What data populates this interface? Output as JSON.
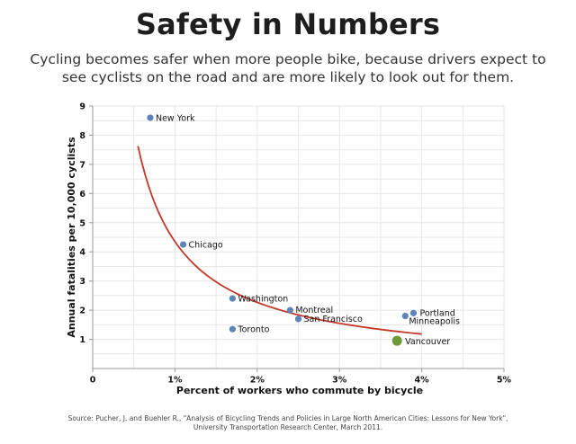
{
  "title": "Safety in Numbers",
  "subtitle": "Cycling becomes safer when more people bike, because drivers expect to see cyclists on the road and are more likely to look out for them.",
  "source": "Source: Pucher, J. and Buehler R., \"Analysis of Bicycling Trends and Policies in Large North American Cities: Lessons for New York\", University Transportation Research Center, March 2011.",
  "chart_data": {
    "type": "scatter",
    "xlabel": "Percent of workers who commute by bicycle",
    "ylabel": "Annual fatalities per 10,000 cyclists",
    "xlim": [
      0,
      5
    ],
    "ylim": [
      0,
      9
    ],
    "x_ticks": [
      {
        "value": 0,
        "label": "0"
      },
      {
        "value": 1,
        "label": "1%"
      },
      {
        "value": 2,
        "label": "2%"
      },
      {
        "value": 3,
        "label": "3%"
      },
      {
        "value": 4,
        "label": "4%"
      },
      {
        "value": 5,
        "label": "5%"
      }
    ],
    "y_ticks": [
      {
        "value": 1,
        "label": "1"
      },
      {
        "value": 2,
        "label": "2"
      },
      {
        "value": 3,
        "label": "3"
      },
      {
        "value": 4,
        "label": "4"
      },
      {
        "value": 5,
        "label": "5"
      },
      {
        "value": 6,
        "label": "6"
      },
      {
        "value": 7,
        "label": "7"
      },
      {
        "value": 8,
        "label": "8"
      },
      {
        "value": 9,
        "label": "9"
      }
    ],
    "grid": true,
    "points": [
      {
        "label": "New York",
        "x": 0.7,
        "y": 8.6,
        "highlight": false
      },
      {
        "label": "Chicago",
        "x": 1.1,
        "y": 4.25,
        "highlight": false
      },
      {
        "label": "Washington",
        "x": 1.7,
        "y": 2.4,
        "highlight": false
      },
      {
        "label": "Toronto",
        "x": 1.7,
        "y": 1.35,
        "highlight": false
      },
      {
        "label": "Montreal",
        "x": 2.4,
        "y": 2.0,
        "highlight": false
      },
      {
        "label": "San Francisco",
        "x": 2.5,
        "y": 1.7,
        "highlight": false
      },
      {
        "label": "Portland",
        "x": 3.9,
        "y": 1.9,
        "highlight": false
      },
      {
        "label": "Minneapolis",
        "x": 3.8,
        "y": 1.8,
        "highlight": false
      },
      {
        "label": "Vancouver",
        "x": 3.7,
        "y": 0.95,
        "highlight": true
      }
    ],
    "trendline": {
      "type": "power",
      "x_range": [
        0.55,
        4.0
      ],
      "a": 4.35,
      "b": -0.94
    },
    "colors": {
      "point": "#5b84b8",
      "highlight": "#6f9a3a",
      "trend": "#c0392b",
      "grid": "#e6e6e6",
      "axis": "#999999"
    }
  }
}
